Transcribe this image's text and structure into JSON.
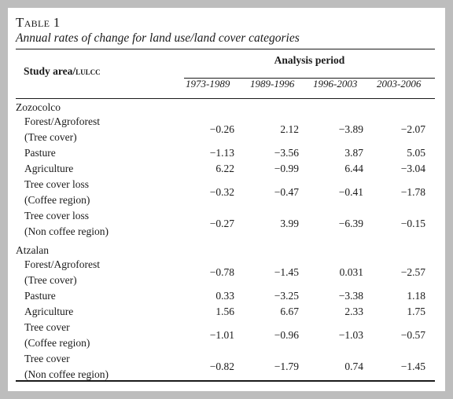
{
  "caption": {
    "number_prefix": "T",
    "number_rest": "able",
    "number": "1",
    "title": "Annual rates of change for land use/land cover categories"
  },
  "header": {
    "study_area_prefix": "Study area/",
    "study_area_abbr": "LULCC",
    "analysis_period": "Analysis period",
    "periods": [
      "1973-1989",
      "1989-1996",
      "1996-2003",
      "2003-2006"
    ]
  },
  "groups": [
    {
      "name": "Zozocolco",
      "rows": [
        {
          "label": [
            "Forest/Agroforest",
            "(Tree cover)"
          ],
          "values": [
            "−0.26",
            "2.12",
            "−3.89",
            "−2.07"
          ]
        },
        {
          "label": [
            "Pasture"
          ],
          "values": [
            "−1.13",
            "−3.56",
            "3.87",
            "5.05"
          ]
        },
        {
          "label": [
            "Agriculture"
          ],
          "values": [
            "6.22",
            "−0.99",
            "6.44",
            "−3.04"
          ]
        },
        {
          "label": [
            "Tree cover loss",
            "(Coffee region)"
          ],
          "values": [
            "−0.32",
            "−0.47",
            "−0.41",
            "−1.78"
          ]
        },
        {
          "label": [
            "Tree cover loss",
            "(Non coffee region)"
          ],
          "values": [
            "−0.27",
            "3.99",
            "−6.39",
            "−0.15"
          ]
        }
      ]
    },
    {
      "name": "Atzalan",
      "rows": [
        {
          "label": [
            "Forest/Agroforest",
            "(Tree cover)"
          ],
          "values": [
            "−0.78",
            "−1.45",
            "0.031",
            "−2.57"
          ]
        },
        {
          "label": [
            "Pasture"
          ],
          "values": [
            "0.33",
            "−3.25",
            "−3.38",
            "1.18"
          ]
        },
        {
          "label": [
            "Agriculture"
          ],
          "values": [
            "1.56",
            "6.67",
            "2.33",
            "1.75"
          ]
        },
        {
          "label": [
            "Tree cover",
            "(Coffee region)"
          ],
          "values": [
            "−1.01",
            "−0.96",
            "−1.03",
            "−0.57"
          ]
        },
        {
          "label": [
            "Tree cover",
            "(Non coffee region)"
          ],
          "values": [
            "−0.82",
            "−1.79",
            "0.74",
            "−1.45"
          ]
        }
      ]
    }
  ]
}
